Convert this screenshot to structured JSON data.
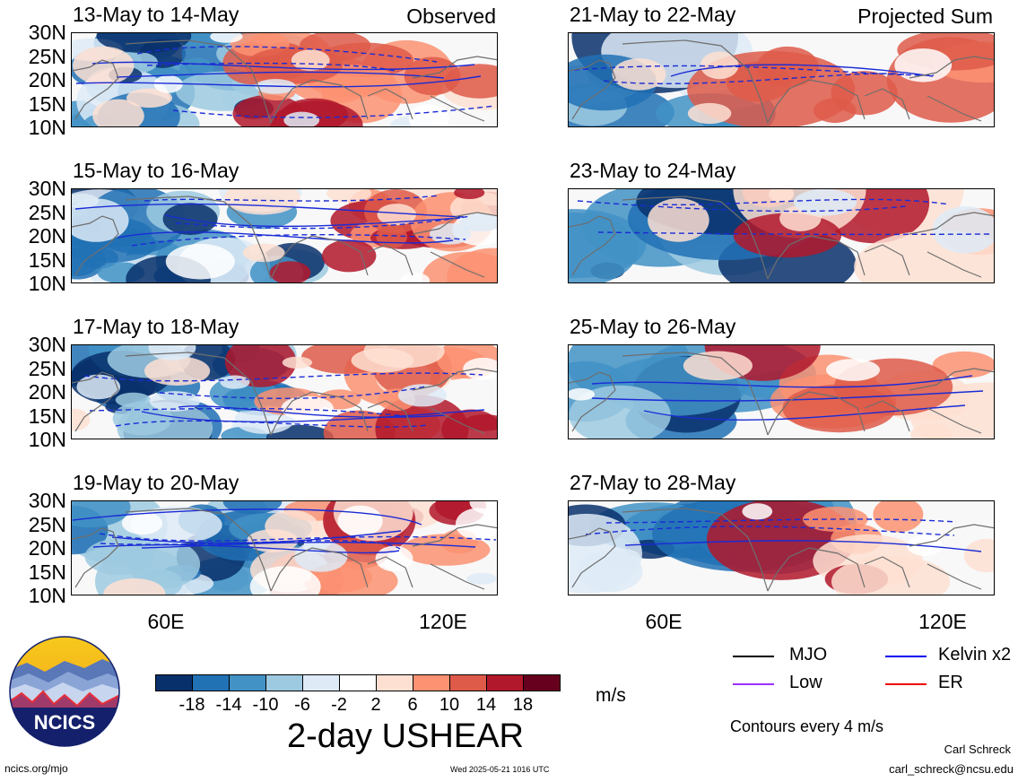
{
  "panels": [
    {
      "title": "13-May to 14-May",
      "tag": "Observed"
    },
    {
      "title": "21-May to 22-May",
      "tag": "Projected Sum"
    },
    {
      "title": "15-May to 16-May",
      "tag": ""
    },
    {
      "title": "23-May to 24-May",
      "tag": ""
    },
    {
      "title": "17-May to 18-May",
      "tag": ""
    },
    {
      "title": "25-May to 26-May",
      "tag": ""
    },
    {
      "title": "19-May to 20-May",
      "tag": ""
    },
    {
      "title": "27-May to 28-May",
      "tag": ""
    }
  ],
  "lat_labels": [
    "30N",
    "25N",
    "20N",
    "15N",
    "10N"
  ],
  "lon_labels": [
    "60E",
    "120E"
  ],
  "colorbar": {
    "ticks": [
      "-18",
      "-14",
      "-10",
      "-6",
      "-2",
      "2",
      "6",
      "10",
      "14",
      "18"
    ],
    "colors": [
      "#08306b",
      "#2171b5",
      "#4292c6",
      "#9ecae1",
      "#deebf7",
      "#ffffff",
      "#fee0d2",
      "#fc9272",
      "#de5a49",
      "#b2182b",
      "#67001f"
    ],
    "units": "m/s"
  },
  "main_title": "2-day USHEAR",
  "legend": {
    "items": [
      {
        "label": "MJO",
        "color": "#000000"
      },
      {
        "label": "Kelvin x2",
        "color": "#0000ee"
      },
      {
        "label": "Low",
        "color": "#9b30ff"
      },
      {
        "label": "ER",
        "color": "#ee0000"
      }
    ],
    "contour_note": "Contours every 4 m/s"
  },
  "logo": {
    "text": "NCICS"
  },
  "footer": {
    "left": "ncics.org/mjo",
    "center": "Wed 2025-05-21 1016 UTC",
    "author": "Carl Schreck",
    "email": "carl_schreck@ncsu.edu"
  }
}
